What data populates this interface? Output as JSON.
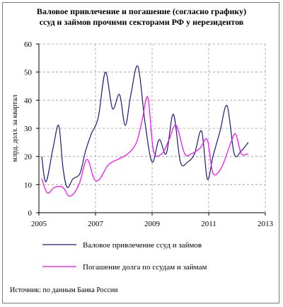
{
  "chart_data": {
    "type": "line",
    "title_lines": [
      "Валовое привлечение и погашение (согласно графику)",
      "ссуд и займов прочими секторами РФ у нерезидентов"
    ],
    "xlabel": "",
    "ylabel": "млрд. долл. за квартал",
    "xlim": [
      2005,
      2013
    ],
    "ylim": [
      0,
      60
    ],
    "x_ticks": [
      2005,
      2007,
      2009,
      2011,
      2013
    ],
    "y_ticks": [
      0,
      10,
      20,
      30,
      40,
      50,
      60
    ],
    "grid": true,
    "legend_position": "bottom",
    "series": [
      {
        "name": "Валовое привлечение ссуд и займов",
        "color": "#1a1a7a",
        "x": [
          2005.1,
          2005.25,
          2005.5,
          2005.7,
          2005.85,
          2006.0,
          2006.2,
          2006.45,
          2006.65,
          2006.85,
          2007.1,
          2007.35,
          2007.6,
          2007.85,
          2008.05,
          2008.25,
          2008.5,
          2008.75,
          2009.0,
          2009.25,
          2009.5,
          2009.75,
          2010.0,
          2010.25,
          2010.5,
          2010.75,
          2010.95,
          2011.15,
          2011.4,
          2011.65,
          2011.9,
          2012.15,
          2012.4
        ],
        "values": [
          20,
          11,
          23,
          31,
          16,
          9,
          12,
          14,
          22,
          28,
          34,
          50,
          37,
          42,
          31,
          42,
          52,
          32,
          18,
          26,
          21,
          35,
          18,
          18,
          21,
          29,
          12,
          20,
          29,
          38,
          21,
          22,
          25
        ]
      },
      {
        "name": "Погашение долга по ссудам и займам",
        "color": "#ff00ff",
        "x": [
          2005.1,
          2005.3,
          2005.55,
          2005.85,
          2006.05,
          2006.25,
          2006.45,
          2006.7,
          2006.95,
          2007.15,
          2007.45,
          2007.8,
          2008.15,
          2008.45,
          2008.65,
          2008.85,
          2009.05,
          2009.35,
          2009.6,
          2009.85,
          2010.15,
          2010.4,
          2010.7,
          2010.95,
          2011.15,
          2011.45,
          2011.75,
          2011.95,
          2012.15,
          2012.4
        ],
        "values": [
          12,
          7,
          9,
          9,
          6,
          7,
          11,
          19,
          12,
          12,
          17,
          19,
          21,
          25,
          33,
          41,
          22,
          21,
          26,
          31,
          21,
          21,
          23,
          26,
          14,
          16,
          24,
          28,
          21,
          21
        ]
      }
    ],
    "source": "Источник: по данным Банка России"
  }
}
